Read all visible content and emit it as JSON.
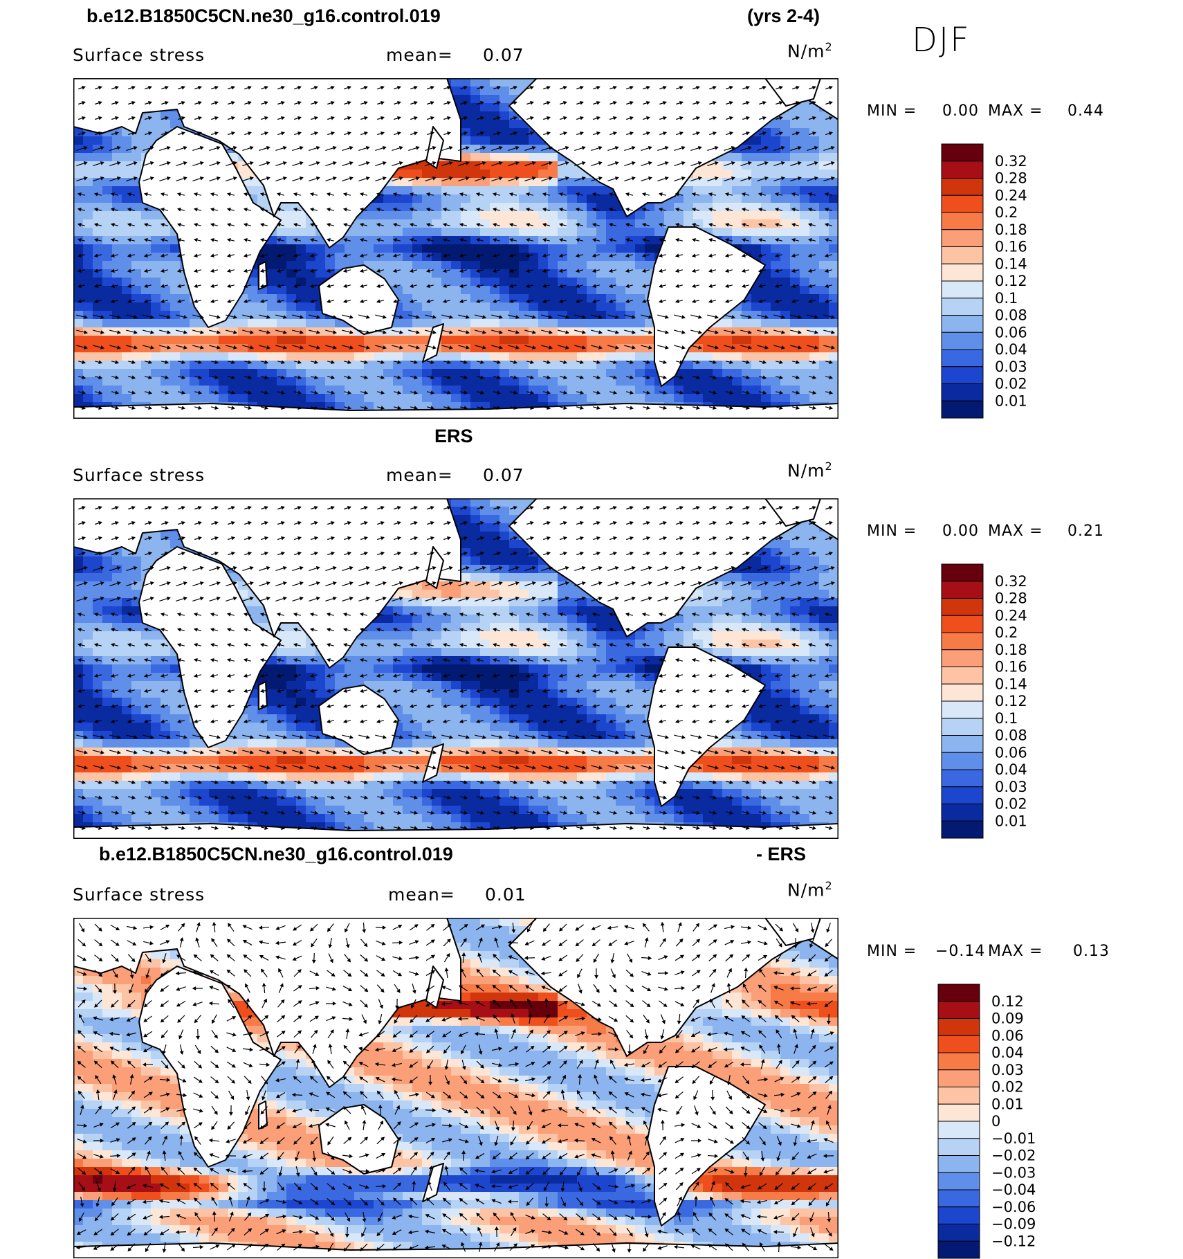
{
  "season": "DJF",
  "units": "N/m",
  "units_sup": "2",
  "panels": [
    {
      "title_left": "b.e12.B1850C5CN.ne30_g16.control.019",
      "title_center": "",
      "title_right": "(yrs 2-4)",
      "variable": "Surface stress",
      "mean_label": "mean=",
      "mean_value": "0.07",
      "min_label": "MIN =",
      "min_value": "0.00",
      "max_label": "MAX =",
      "max_value": "0.44",
      "colorbar": {
        "labels": [
          "0.32",
          "0.28",
          "0.24",
          "0.2",
          "0.18",
          "0.16",
          "0.14",
          "0.12",
          "0.1",
          "0.08",
          "0.06",
          "0.04",
          "0.03",
          "0.02",
          "0.01"
        ],
        "colors": [
          "#67000d",
          "#a50f15",
          "#d0350c",
          "#ee4f1d",
          "#f77b47",
          "#fb9f78",
          "#fcc3a5",
          "#fde6d6",
          "#d9e8f8",
          "#b6d2f4",
          "#8cb4ef",
          "#5f8fe8",
          "#3968e1",
          "#1c46cd",
          "#0a2a9f",
          "#021a72"
        ]
      }
    },
    {
      "title_left": "",
      "title_center": "ERS",
      "title_right": "",
      "variable": "Surface stress",
      "mean_label": "mean=",
      "mean_value": "0.07",
      "min_label": "MIN =",
      "min_value": "0.00",
      "max_label": "MAX =",
      "max_value": "0.21",
      "colorbar": {
        "labels": [
          "0.32",
          "0.28",
          "0.24",
          "0.2",
          "0.18",
          "0.16",
          "0.14",
          "0.12",
          "0.1",
          "0.08",
          "0.06",
          "0.04",
          "0.03",
          "0.02",
          "0.01"
        ],
        "colors": [
          "#67000d",
          "#a50f15",
          "#d0350c",
          "#ee4f1d",
          "#f77b47",
          "#fb9f78",
          "#fcc3a5",
          "#fde6d6",
          "#d9e8f8",
          "#b6d2f4",
          "#8cb4ef",
          "#5f8fe8",
          "#3968e1",
          "#1c46cd",
          "#0a2a9f",
          "#021a72"
        ]
      }
    },
    {
      "title_left": "b.e12.B1850C5CN.ne30_g16.control.019",
      "title_center": "",
      "title_right": "- ERS",
      "variable": "Surface stress",
      "mean_label": "mean=",
      "mean_value": "0.01",
      "min_label": "MIN =",
      "min_value": "−0.14",
      "max_label": "MAX =",
      "max_value": "0.13",
      "colorbar": {
        "labels": [
          "0.12",
          "0.09",
          "0.06",
          "0.04",
          "0.03",
          "0.02",
          "0.01",
          "0",
          "−0.01",
          "−0.02",
          "−0.03",
          "−0.04",
          "−0.06",
          "−0.09",
          "−0.12"
        ],
        "colors": [
          "#67000d",
          "#a50f15",
          "#d0350c",
          "#ee4f1d",
          "#f77b47",
          "#fb9f78",
          "#fcc3a5",
          "#fde6d6",
          "#d9e8f8",
          "#b6d2f4",
          "#8cb4ef",
          "#5f8fe8",
          "#3968e1",
          "#1c46cd",
          "#0a2a9f",
          "#021a72"
        ]
      }
    }
  ],
  "colors": {
    "land": "#ffffff",
    "coast": "#000000",
    "arrow": "#000000"
  }
}
